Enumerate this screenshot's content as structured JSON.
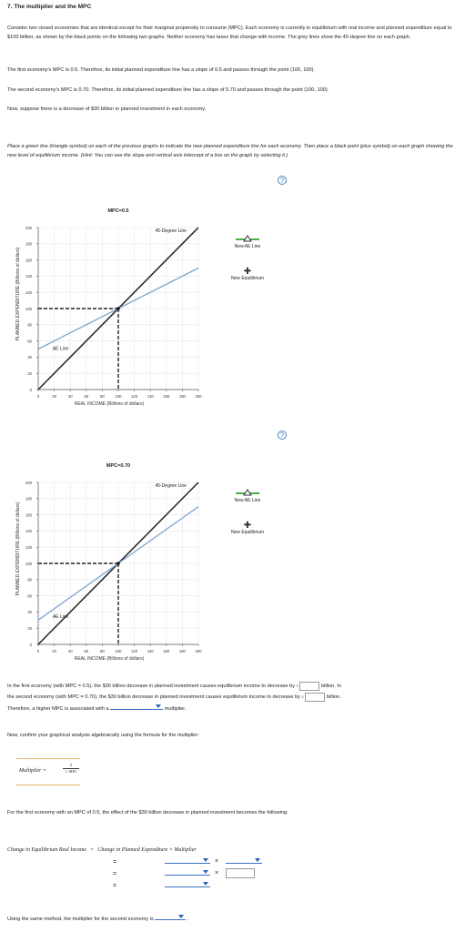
{
  "title": "7. The multiplier and the MPC",
  "intro": "Consider two closed economies that are identical except for their marginal propensity to consume (MPC). Each economy is currently in equilibrium with real income and planned expenditure equal to $100 billion, as shown by the black points on the following two graphs. Neither economy has taxes that change with income. The grey lines show the 45-degree line on each graph.",
  "first_mpc_text": "The first economy's MPC is 0.5. Therefore, its initial planned expenditure line has a slope of 0.5 and passes through the point (100, 100).",
  "second_mpc_text": "The second economy's MPC is 0.70. Therefore, its initial planned expenditure line has a slope of 0.70 and passes through the point (100, 100).",
  "decrease_text": "Now, suppose there is a decrease of $30 billion in planned investment in each economy.",
  "instructions": "Place a green line (triangle symbol) on each of the previous graphs to indicate the new planned expenditure line for each economy. Then place a black point (plus symbol) on each graph showing the new level of equilibrium income. (Hint: You can see the slope and vertical axis intercept of a line on the graph by selecting it.)",
  "help_symbol": "?",
  "graphs": [
    {
      "chart_data": {
        "type": "line",
        "title": "MPC=0.5",
        "xlabel": "REAL INCOME (Billions of dollars)",
        "ylabel": "PLANNED EXPENDITURE (Billions of dollars)",
        "xlim": [
          0,
          200
        ],
        "ylim": [
          0,
          200
        ],
        "xticks": [
          0,
          20,
          40,
          60,
          80,
          100,
          120,
          140,
          160,
          180,
          200
        ],
        "yticks": [
          0,
          20,
          40,
          60,
          80,
          100,
          120,
          140,
          160,
          180,
          200
        ],
        "series": [
          {
            "name": "45-Degree Line",
            "x": [
              0,
              200
            ],
            "y": [
              0,
              200
            ],
            "color": "#2b2b2b"
          },
          {
            "name": "AE Line",
            "x": [
              0,
              200
            ],
            "y": [
              50,
              150
            ],
            "color": "#7fa6cf"
          }
        ],
        "points": [
          {
            "x": 100,
            "y": 100
          }
        ]
      },
      "legend": {
        "new_ae_line": "New AE Line",
        "new_equilibrium": "New Equilibrium"
      }
    },
    {
      "chart_data": {
        "type": "line",
        "title": "MPC=0.70",
        "xlabel": "REAL INCOME (Billions of dollars)",
        "ylabel": "PLANNED EXPENDITURE (Billions of dollars)",
        "xlim": [
          0,
          200
        ],
        "ylim": [
          0,
          200
        ],
        "xticks": [
          0,
          20,
          40,
          60,
          80,
          100,
          120,
          140,
          160,
          180,
          200
        ],
        "yticks": [
          0,
          20,
          40,
          60,
          80,
          100,
          120,
          140,
          160,
          180,
          200
        ],
        "series": [
          {
            "name": "45-Degree Line",
            "x": [
              0,
              200
            ],
            "y": [
              0,
              200
            ],
            "color": "#2b2b2b"
          },
          {
            "name": "AE Line",
            "x": [
              0,
              200
            ],
            "y": [
              30,
              170
            ],
            "color": "#7fa6cf"
          }
        ],
        "points": [
          {
            "x": 100,
            "y": 100
          }
        ]
      },
      "legend": {
        "new_ae_line": "New AE Line",
        "new_equilibrium": "New Equilibrium"
      }
    }
  ],
  "q1": {
    "part1": "In the first economy (with MPC = 0.5), the $30 billion decrease in planned investment causes equilibrium income to decrease by",
    "unit1": "billion. In",
    "part2": "the second economy (with MPC = 0.70), the $30 billion decrease in planned investment causes equilibrium income to decrease by",
    "unit2": "billion.",
    "part3": "Therefore, a higher MPC is associated with a",
    "part3_end": "multiplier.",
    "dollar": "$"
  },
  "confirm_text": "Now, confirm your graphical analysis algebraically using the formula for the multiplier:",
  "formula": {
    "lhs": "Multiplier",
    "eq": "=",
    "num": "1",
    "den": "1−MPC"
  },
  "first_effect_text": "For the first economy with an MPC of 0.5, the effect of the $30 billion decrease in planned investment becomes the following:",
  "equation": {
    "lhs": "Change in Equilibrium Real Income",
    "eq": "=",
    "rhs": "Change in Planned Expenditure × Multiplier",
    "times": "×"
  },
  "last_line": "Using the same method, the multiplier for the second economy is"
}
